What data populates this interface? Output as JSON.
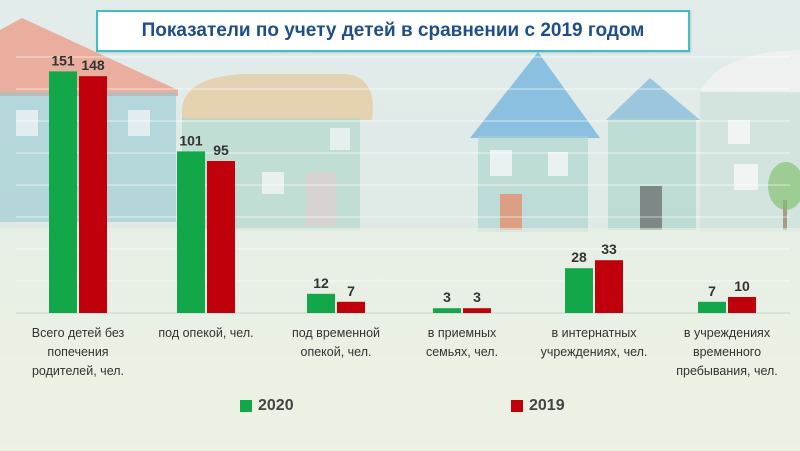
{
  "title": "Показатели по учету детей в сравнении с 2019 годом",
  "colors": {
    "series_2020": "#12a84a",
    "series_2019": "#c0000b",
    "title_text": "#1f4e8c",
    "title_border": "#3fbfc4"
  },
  "chart_data": {
    "type": "bar",
    "title": "Показатели по учету детей в сравнении с 2019 годом",
    "categories": [
      "Всего детей без попечения родителей, чел.",
      "под опекой, чел.",
      "под временной опекой, чел.",
      "в приемных семьях, чел.",
      "в интернатных учреждениях, чел.",
      "в учреждениях временного пребывания, чел."
    ],
    "series": [
      {
        "name": "2020",
        "values": [
          151,
          101,
          12,
          3,
          28,
          7
        ]
      },
      {
        "name": "2019",
        "values": [
          148,
          95,
          7,
          3,
          33,
          10
        ]
      }
    ],
    "ylim": [
      0,
      160
    ],
    "grid": true,
    "legend_position": "bottom",
    "data_labels": true
  }
}
